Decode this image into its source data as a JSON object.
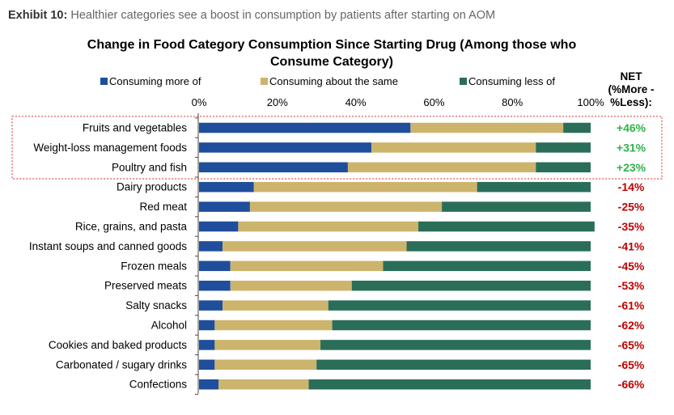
{
  "header": {
    "exhibit_label": "Exhibit 10:",
    "exhibit_text": "Healthier categories see a boost in consumption by patients after starting on AOM"
  },
  "chart_data": {
    "type": "bar",
    "orientation": "horizontal",
    "stacked": true,
    "title_line1": "Change in Food Category Consumption Since Starting Drug (Among those who",
    "title_line2": "Consume Category)",
    "categories": [
      "Fruits and vegetables",
      "Weight-loss management foods",
      "Poultry and fish",
      "Dairy products",
      "Red meat",
      "Rice, grains, and pasta",
      "Instant soups and canned goods",
      "Frozen meals",
      "Preserved meats",
      "Salty snacks",
      "Alcohol",
      "Cookies and baked products",
      "Carbonated / sugary drinks",
      "Confections"
    ],
    "series": [
      {
        "name": "Consuming more of",
        "color": "#1f4e9c",
        "values": [
          54,
          44,
          38,
          14,
          13,
          10,
          6,
          8,
          8,
          6,
          4,
          4,
          4,
          5
        ]
      },
      {
        "name": "Consuming about the same",
        "color": "#cdb46c",
        "values": [
          39,
          42,
          48,
          57,
          49,
          46,
          47,
          39,
          31,
          27,
          30,
          27,
          26,
          23
        ]
      },
      {
        "name": "Consuming less of",
        "color": "#2a6e5a",
        "values": [
          7,
          14,
          14,
          29,
          38,
          45,
          47,
          53,
          61,
          67,
          66,
          69,
          70,
          72
        ]
      }
    ],
    "xlim": [
      0,
      100
    ],
    "x_ticks": [
      "0%",
      "20%",
      "40%",
      "60%",
      "80%",
      "100%"
    ],
    "legend_position": "top",
    "net_header": [
      "NET",
      "(%More -",
      "%Less):"
    ],
    "net_values": [
      "+46%",
      "+31%",
      "+23%",
      "-14%",
      "-25%",
      "-35%",
      "-41%",
      "-45%",
      "-53%",
      "-61%",
      "-62%",
      "-65%",
      "-65%",
      "-66%"
    ],
    "net_colors": {
      "positive": "#2fb34a",
      "negative": "#c00000"
    },
    "highlighted_rows": 3,
    "highlight_color": "#d9534f"
  }
}
